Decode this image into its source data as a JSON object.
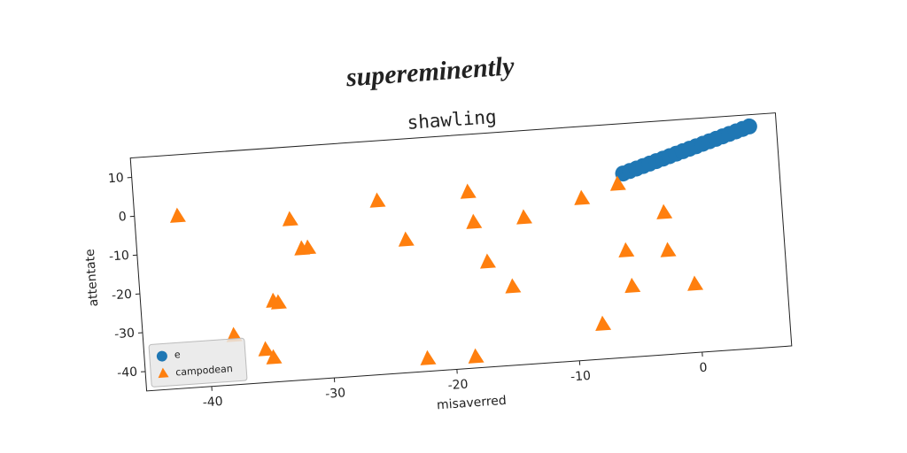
{
  "chart_data": {
    "type": "scatter",
    "suptitle": "supereminently",
    "title": "shawling",
    "xlabel": "misaverred",
    "ylabel": "attentate",
    "xlim": [
      -45.3,
      7.3
    ],
    "xticks": [
      -40,
      -30,
      -20,
      -10,
      0
    ],
    "ylim": [
      -45,
      15
    ],
    "yticks": [
      -40,
      -30,
      -20,
      -10,
      0,
      10
    ],
    "legend": "lower left",
    "series": [
      {
        "name": "e",
        "color": "#1f77b4",
        "marker": "circle",
        "x": [
          -5.4,
          -4.85,
          -4.29,
          -3.74,
          -3.19,
          -2.64,
          -2.08,
          -1.53,
          -0.98,
          -0.43,
          0.13,
          0.68,
          1.23,
          1.78,
          2.34,
          2.89,
          3.44,
          4.0,
          4.55,
          5.1
        ],
        "values": [
          2.2,
          2.72,
          3.23,
          3.75,
          4.26,
          4.78,
          5.29,
          5.81,
          6.33,
          6.84,
          7.36,
          7.87,
          8.39,
          8.91,
          9.42,
          9.94,
          10.45,
          10.97,
          11.48,
          12.0
        ]
      },
      {
        "name": "campodean",
        "color": "#ff7f0e",
        "marker": "triangle",
        "x": [
          -41.8,
          -32.7,
          -31.9,
          -31.4,
          -34.5,
          -34.1,
          -37.9,
          -35.4,
          -34.8,
          -25.5,
          -23.4,
          -22.3,
          -18.1,
          -17.8,
          -16.9,
          -18.4,
          -15.0,
          -13.7,
          -8.9,
          -5.9,
          -5.6,
          -5.3,
          -7.9,
          -2.3,
          -2.2,
          -0.2
        ],
        "values": [
          -0.9,
          -3.8,
          -11.5,
          -11.4,
          -24.4,
          -24.9,
          -32.5,
          -36.7,
          -38.9,
          -0.6,
          -11.1,
          -41.9,
          0.05,
          -7.8,
          -18.2,
          -42.3,
          -25.0,
          -7.5,
          -3.6,
          -0.6,
          -17.8,
          -27.0,
          -36.2,
          -8.7,
          -18.5,
          -27.6
        ]
      }
    ]
  }
}
